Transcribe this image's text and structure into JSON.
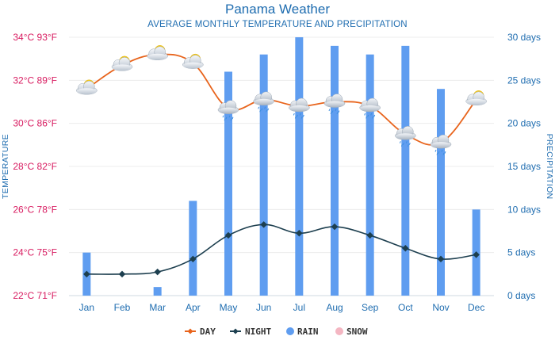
{
  "chart_data": {
    "type": "bar",
    "title": "Panama Weather",
    "subtitle": "AVERAGE MONTHLY TEMPERATURE AND PRECIPITATION",
    "categories": [
      "Jan",
      "Feb",
      "Mar",
      "Apr",
      "May",
      "Jun",
      "Jul",
      "Aug",
      "Sep",
      "Oct",
      "Nov",
      "Dec"
    ],
    "series": [
      {
        "name": "DAY",
        "type": "line",
        "axis": "temperature",
        "color": "#e8641c",
        "values": [
          31.6,
          32.7,
          33.2,
          32.8,
          30.7,
          31.1,
          30.8,
          31.0,
          30.8,
          29.5,
          29.1,
          31.1
        ]
      },
      {
        "name": "NIGHT",
        "type": "line",
        "axis": "temperature",
        "color": "#1d3f4f",
        "values": [
          23.0,
          23.0,
          23.1,
          23.7,
          24.8,
          25.3,
          24.9,
          25.2,
          24.8,
          24.2,
          23.7,
          23.9
        ]
      },
      {
        "name": "RAIN",
        "type": "bar",
        "axis": "precipitation",
        "color": "#5f9df0",
        "values": [
          5,
          0,
          1,
          11,
          26,
          28,
          30,
          29,
          28,
          29,
          24,
          10
        ]
      },
      {
        "name": "SNOW",
        "type": "bar",
        "axis": "precipitation",
        "color": "#f4b6c2",
        "values": [
          0,
          0,
          0,
          0,
          0,
          0,
          0,
          0,
          0,
          0,
          0,
          0
        ]
      }
    ],
    "y_left": {
      "label": "TEMPERATURE",
      "ylim": [
        22,
        34
      ],
      "ticks": [
        22,
        24,
        26,
        28,
        30,
        32,
        34
      ],
      "tick_labels": [
        "22°C 71°F",
        "24°C 75°F",
        "26°C 78°F",
        "28°C 82°F",
        "30°C 86°F",
        "32°C 89°F",
        "34°C 93°F"
      ]
    },
    "y_right": {
      "label": "PRECIPITATION",
      "ylim": [
        0,
        30
      ],
      "ticks": [
        0,
        5,
        10,
        15,
        20,
        25,
        30
      ],
      "tick_labels": [
        "0 days",
        "5 days",
        "10 days",
        "15 days",
        "20 days",
        "25 days",
        "30 days"
      ]
    },
    "weather_icons": [
      "sun-cloud",
      "sun-cloud",
      "sun-cloud",
      "sun-cloud",
      "rain-cloud",
      "rain-cloud",
      "rain-cloud",
      "rain-cloud",
      "rain-cloud",
      "rain-cloud",
      "rain-cloud",
      "sun-cloud"
    ],
    "grid": true,
    "legend_position": "bottom"
  }
}
